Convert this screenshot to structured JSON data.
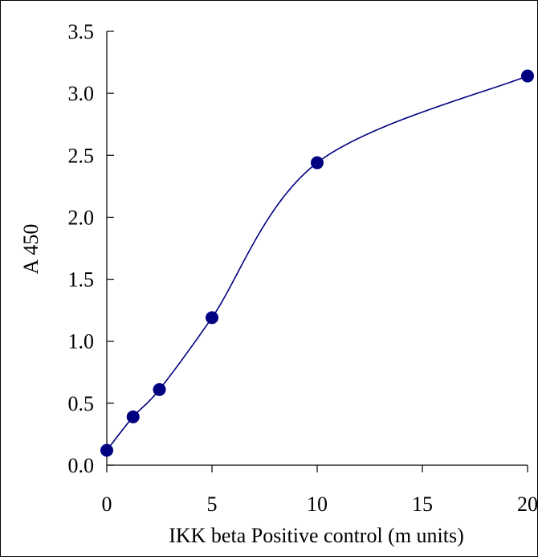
{
  "chart_data": {
    "type": "line",
    "title": "",
    "xlabel": "IKK beta Positive control (m units)",
    "ylabel": "A 450",
    "xlim": [
      0,
      20
    ],
    "ylim": [
      0,
      3.5
    ],
    "x_ticks": [
      0,
      5,
      10,
      15,
      20
    ],
    "x_tick_labels": [
      "0",
      "5",
      "10",
      "15",
      "20"
    ],
    "y_ticks": [
      0,
      0.5,
      1.0,
      1.5,
      2.0,
      2.5,
      3.0,
      3.5
    ],
    "y_tick_labels": [
      "0.0",
      "0.5",
      "1.0",
      "1.5",
      "2.0",
      "2.5",
      "3.0",
      "3.5"
    ],
    "grid": false,
    "legend": "none",
    "series": [
      {
        "x": [
          0,
          1.25,
          2.5,
          5,
          10,
          20
        ],
        "y": [
          0.12,
          0.39,
          0.61,
          1.19,
          2.44,
          3.14
        ],
        "color": "#000080",
        "marker": "circle",
        "smooth": true
      }
    ]
  }
}
